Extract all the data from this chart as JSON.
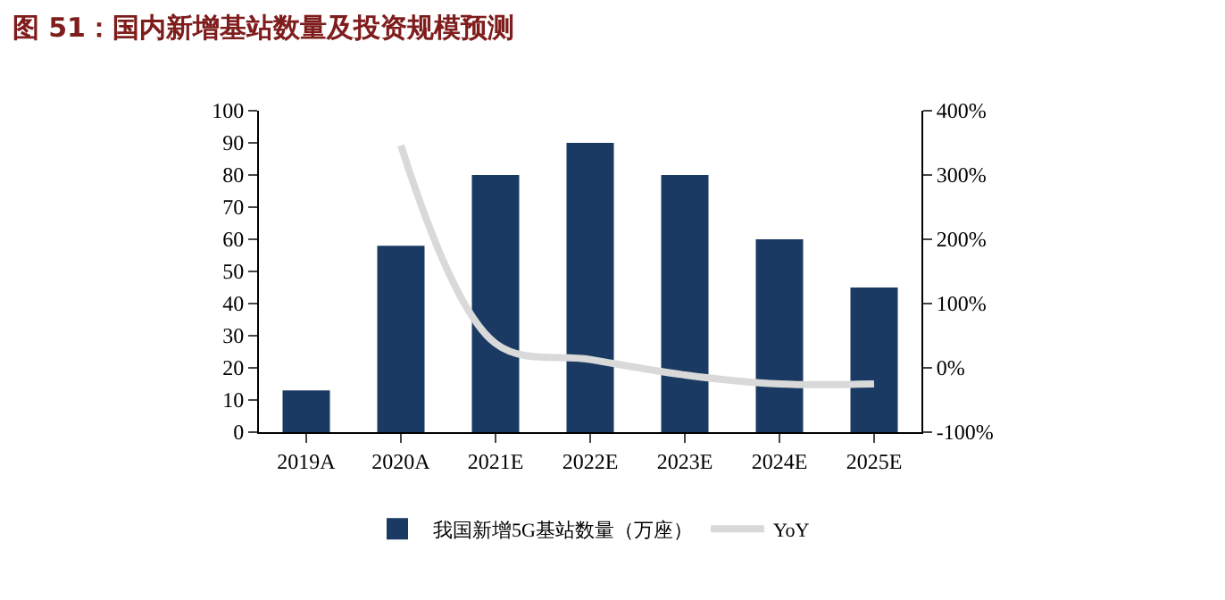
{
  "chart_data": {
    "type": "bar",
    "title": "图 51：国内新增基站数量及投资规模预测",
    "categories": [
      "2019A",
      "2020A",
      "2021E",
      "2022E",
      "2023E",
      "2024E",
      "2025E"
    ],
    "series": [
      {
        "name": "我国新增5G基站数量（万座）",
        "color": "#1b3a63",
        "values": [
          13,
          58,
          80,
          90,
          80,
          60,
          45
        ]
      },
      {
        "name": "YoY",
        "type": "line",
        "axis": "y2",
        "color": "#d9d9d9",
        "values": [
          null,
          346,
          38,
          13,
          -11,
          -25,
          -25
        ]
      }
    ],
    "ylim": [
      0,
      100
    ],
    "yticks": [
      0,
      10,
      20,
      30,
      40,
      50,
      60,
      70,
      80,
      90,
      100
    ],
    "y2lim": [
      -100,
      400
    ],
    "y2ticks": [
      {
        "value": -100,
        "label": "-100%"
      },
      {
        "value": 0,
        "label": "0%"
      },
      {
        "value": 100,
        "label": "100%"
      },
      {
        "value": 200,
        "label": "200%"
      },
      {
        "value": 300,
        "label": "300%"
      },
      {
        "value": 400,
        "label": "400%"
      }
    ],
    "grid": false,
    "legend": "bottom",
    "marker": "none",
    "line_style": "solid"
  }
}
